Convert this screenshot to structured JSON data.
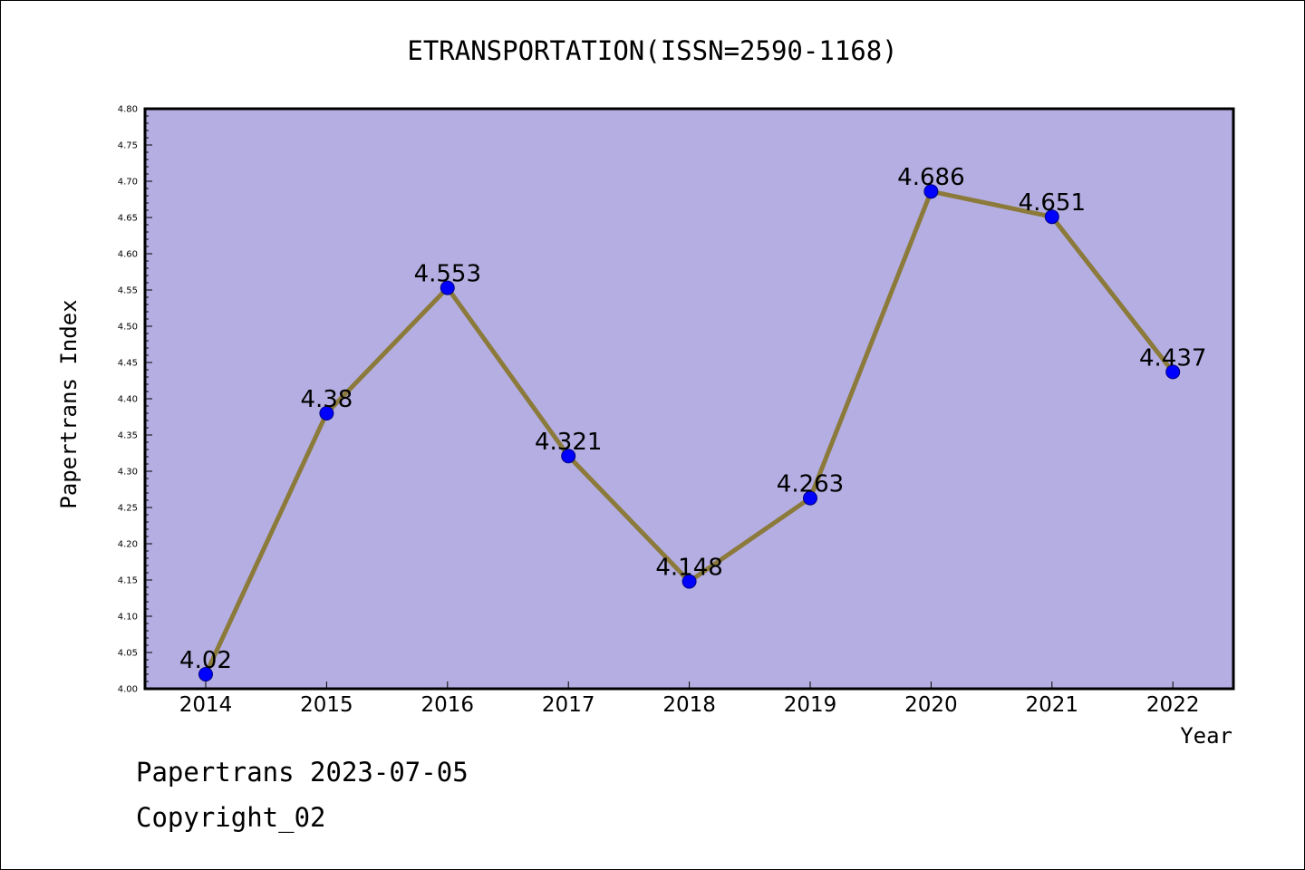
{
  "chart_data": {
    "type": "line",
    "title": "ETRANSPORTATION(ISSN=2590-1168)",
    "xlabel": "Year",
    "ylabel": "Papertrans Index",
    "categories": [
      "2014",
      "2015",
      "2016",
      "2017",
      "2018",
      "2019",
      "2020",
      "2021",
      "2022"
    ],
    "values": [
      4.02,
      4.38,
      4.553,
      4.321,
      4.148,
      4.263,
      4.686,
      4.651,
      4.437
    ],
    "data_labels": [
      "4.02",
      "4.38",
      "4.553",
      "4.321",
      "4.148",
      "4.263",
      "4.686",
      "4.651",
      "4.437"
    ],
    "ylim": [
      4.0,
      4.8
    ],
    "yticks": [
      "4.00",
      "4.05",
      "4.10",
      "4.15",
      "4.20",
      "4.25",
      "4.30",
      "4.35",
      "4.40",
      "4.45",
      "4.50",
      "4.55",
      "4.60",
      "4.65",
      "4.70",
      "4.75",
      "4.80"
    ],
    "grid": false,
    "legend": "none",
    "colors": {
      "plot_background": "#b4aee2",
      "line": "#8b7a3a",
      "marker": "#0000ff"
    }
  },
  "footer": {
    "line1": "Papertrans 2023-07-05",
    "line2": "Copyright_02"
  }
}
